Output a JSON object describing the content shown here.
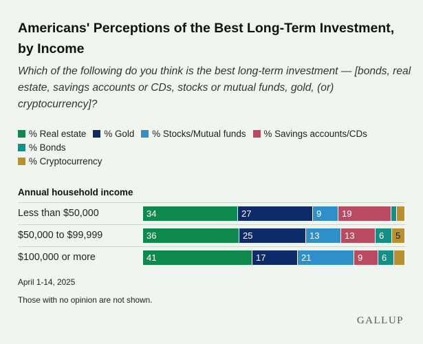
{
  "header": {
    "title": "Americans' Perceptions of the Best Long-Term Investment, by Income",
    "subtitle": "Which of the following do you think is the best long-term investment — [bonds, real estate, savings accounts or CDs, stocks or mutual funds, gold, (or) cryptocurrency]?"
  },
  "colors": {
    "real_estate": "#0f8a4f",
    "gold": "#0d2b6b",
    "stocks": "#2f8fc9",
    "savings": "#b94a62",
    "bonds": "#138f86",
    "crypto": "#b8912e"
  },
  "chart_data": {
    "type": "bar",
    "stacked": true,
    "orientation": "horizontal",
    "group_label": "Annual household income",
    "categories": [
      "Less than $50,000",
      "$50,000 to $99,999",
      "$100,000 or more"
    ],
    "series": [
      {
        "name": "% Real estate",
        "color": "#0f8a4f",
        "values": [
          34,
          36,
          41
        ],
        "labels": [
          "34",
          "36",
          "41"
        ]
      },
      {
        "name": "% Gold",
        "color": "#0d2b6b",
        "values": [
          27,
          25,
          17
        ],
        "labels": [
          "27",
          "25",
          "17"
        ]
      },
      {
        "name": "% Stocks/Mutual funds",
        "color": "#2f8fc9",
        "values": [
          9,
          13,
          21
        ],
        "labels": [
          "9",
          "13",
          "21"
        ]
      },
      {
        "name": "% Savings accounts/CDs",
        "color": "#b94a62",
        "values": [
          19,
          13,
          9
        ],
        "labels": [
          "19",
          "13",
          "9"
        ]
      },
      {
        "name": "% Bonds",
        "color": "#138f86",
        "values": [
          2,
          6,
          6
        ],
        "labels": [
          "",
          "6",
          "6"
        ]
      },
      {
        "name": "% Cryptocurrency",
        "color": "#b8912e",
        "values": [
          3,
          5,
          4
        ],
        "labels": [
          "",
          "5",
          ""
        ]
      }
    ],
    "xlim": [
      0,
      100
    ],
    "legend_position": "top-left"
  },
  "footer": {
    "date": "April 1-14, 2025",
    "note": "Those with no opinion are not shown.",
    "brand": "GALLUP"
  }
}
